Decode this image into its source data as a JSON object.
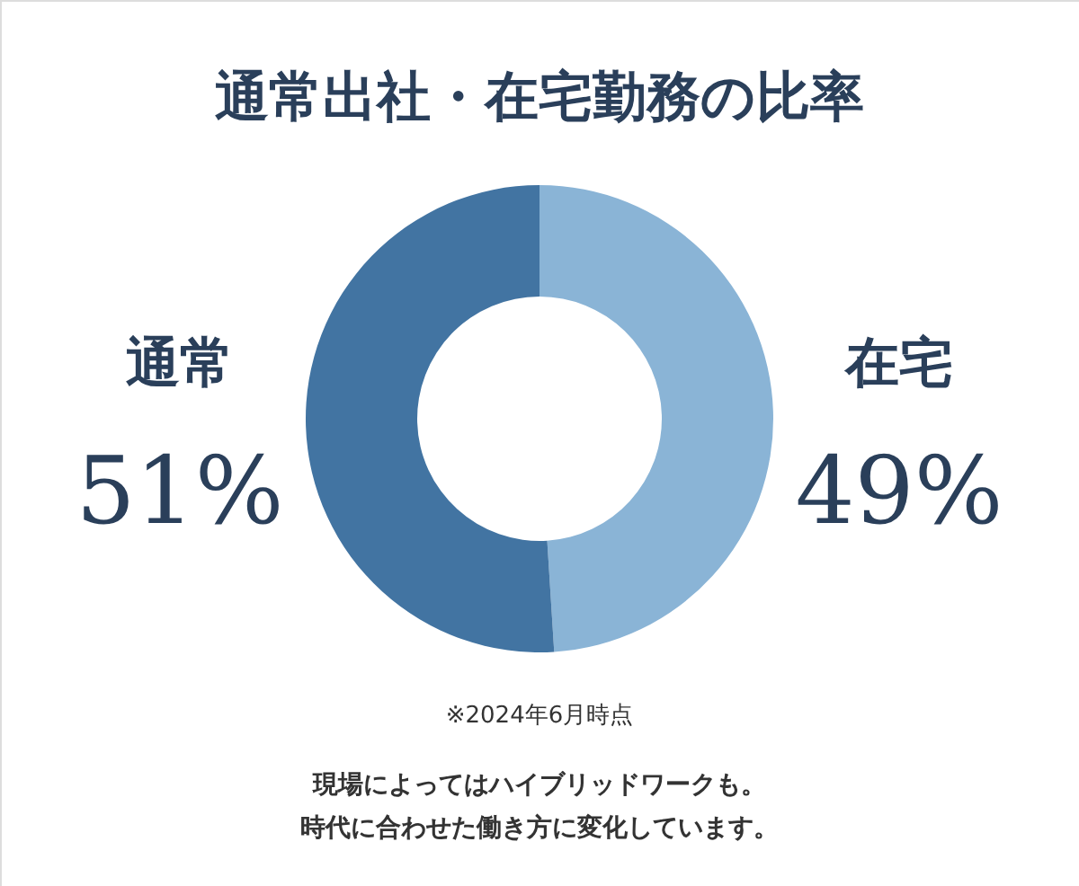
{
  "chart_data": {
    "type": "donut",
    "title": "通常出社・在宅勤務の比率",
    "categories": [
      "在宅",
      "通常"
    ],
    "values": [
      49,
      51
    ],
    "colors": [
      "#8ab4d6",
      "#4274a2"
    ],
    "value_labels": [
      "49%",
      "51%"
    ],
    "annotations": [
      "※2024年6月時点",
      "現場によってはハイブリッドワークも。",
      "時代に合わせた働き方に変化しています。"
    ]
  }
}
